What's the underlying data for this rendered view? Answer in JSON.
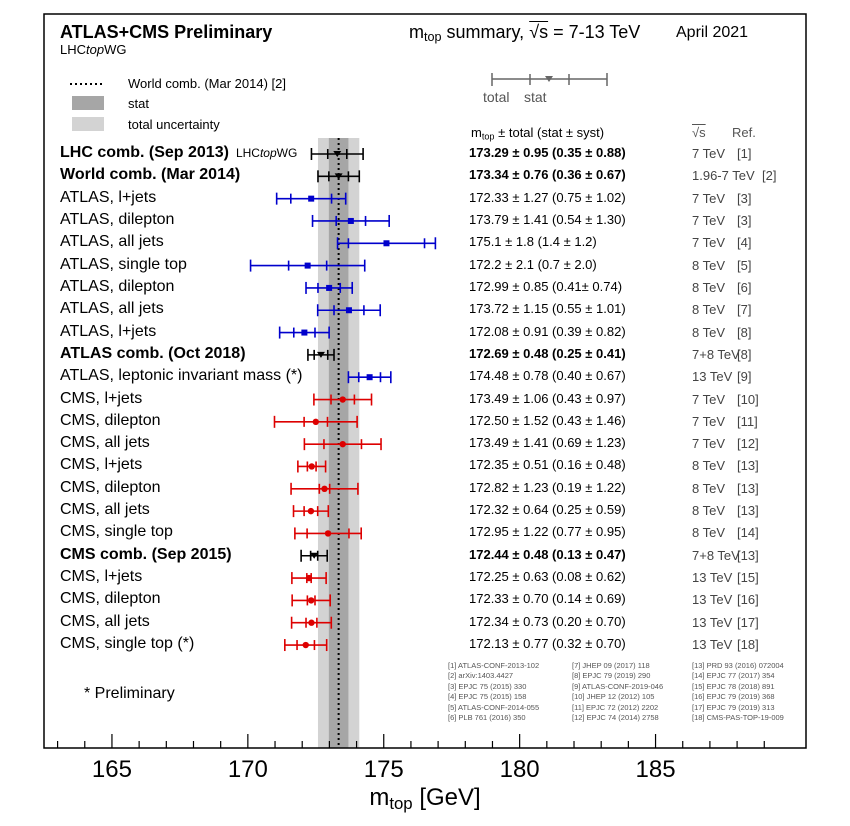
{
  "header": {
    "title": "ATLAS+CMS Preliminary",
    "group_pre": "LHC",
    "group_italic": "top",
    "group_post": "WG",
    "summary_pre": "m",
    "summary_sub": "top",
    "summary_mid": " summary, ",
    "summary_sqrt": "√s",
    "summary_post": " = 7-13 TeV",
    "date": "April 2021"
  },
  "legend": {
    "world_comb": "World comb. (Mar 2014) [2]",
    "stat": "stat",
    "total": "total uncertainty",
    "err_total": "total",
    "err_stat": "stat"
  },
  "columns": {
    "value_pre": "m",
    "value_sub": "top",
    "value_post": " ± total (stat ± syst)",
    "sqrt": "√s",
    "ref": "Ref."
  },
  "colors": {
    "black": "#000000",
    "blue": "#0000cc",
    "red": "#dd0000",
    "band_total": "#d3d3d3",
    "band_stat": "#a6a6a6"
  },
  "world_combination": {
    "value": 173.34,
    "stat": 0.36,
    "total": 0.76
  },
  "chart_data": {
    "type": "forest",
    "xlabel_pre": "m",
    "xlabel_sub": "top",
    "xlabel_post": " [GeV]",
    "xlim": [
      162.5,
      189.5
    ],
    "xticks": [
      "165",
      "170",
      "175",
      "180",
      "185"
    ],
    "rows": [
      {
        "label": "LHC comb. (Sep 2013)",
        "tag_pre": "LHC",
        "tag_italic": "top",
        "tag_post": "WG",
        "value": 173.29,
        "total": 0.95,
        "stat": 0.35,
        "text": "173.29 ± 0.95 (0.35 ± 0.88)",
        "energy": "7 TeV",
        "ref": "[1]",
        "color": "black",
        "bold": true,
        "marker": "tri"
      },
      {
        "label": "World comb. (Mar 2014)",
        "value": 173.34,
        "total": 0.76,
        "stat": 0.36,
        "text": "173.34 ± 0.76 (0.36 ± 0.67)",
        "energy": "1.96-7 TeV",
        "ref": "[2]",
        "color": "black",
        "bold": true,
        "marker": "tri"
      },
      {
        "label": "ATLAS, l+jets",
        "value": 172.33,
        "total": 1.27,
        "stat": 0.75,
        "text": "172.33 ± 1.27 (0.75 ± 1.02)",
        "energy": "7 TeV",
        "ref": "[3]",
        "color": "blue",
        "bold": false,
        "marker": "square"
      },
      {
        "label": "ATLAS, dilepton",
        "value": 173.79,
        "total": 1.41,
        "stat": 0.54,
        "text": "173.79 ± 1.41 (0.54 ± 1.30)",
        "energy": "7 TeV",
        "ref": "[3]",
        "color": "blue",
        "bold": false,
        "marker": "square"
      },
      {
        "label": "ATLAS, all jets",
        "value": 175.1,
        "total": 1.8,
        "stat": 1.4,
        "text": "175.1 ± 1.8 (1.4 ± 1.2)",
        "energy": "7 TeV",
        "ref": "[4]",
        "color": "blue",
        "bold": false,
        "marker": "square"
      },
      {
        "label": "ATLAS, single top",
        "value": 172.2,
        "total": 2.1,
        "stat": 0.7,
        "text": "172.2 ± 2.1 (0.7 ± 2.0)",
        "energy": "8 TeV",
        "ref": "[5]",
        "color": "blue",
        "bold": false,
        "marker": "square"
      },
      {
        "label": "ATLAS, dilepton",
        "value": 172.99,
        "total": 0.85,
        "stat": 0.41,
        "text": "172.99 ± 0.85 (0.41± 0.74)",
        "energy": "8 TeV",
        "ref": "[6]",
        "color": "blue",
        "bold": false,
        "marker": "square"
      },
      {
        "label": "ATLAS, all jets",
        "value": 173.72,
        "total": 1.15,
        "stat": 0.55,
        "text": "173.72 ± 1.15 (0.55 ± 1.01)",
        "energy": "8 TeV",
        "ref": "[7]",
        "color": "blue",
        "bold": false,
        "marker": "square"
      },
      {
        "label": "ATLAS, l+jets",
        "value": 172.08,
        "total": 0.91,
        "stat": 0.39,
        "text": "172.08 ± 0.91 (0.39 ± 0.82)",
        "energy": "8 TeV",
        "ref": "[8]",
        "color": "blue",
        "bold": false,
        "marker": "square"
      },
      {
        "label": "ATLAS comb. (Oct 2018)",
        "value": 172.69,
        "total": 0.48,
        "stat": 0.25,
        "text": "172.69 ± 0.48 (0.25 ± 0.41)",
        "energy": "7+8 TeV",
        "ref": "[8]",
        "color": "black",
        "bold": true,
        "marker": "tri"
      },
      {
        "label": "ATLAS, leptonic invariant mass (*)",
        "value": 174.48,
        "total": 0.78,
        "stat": 0.4,
        "text": "174.48 ± 0.78 (0.40 ± 0.67)",
        "energy": "13 TeV",
        "ref": "[9]",
        "color": "blue",
        "bold": false,
        "marker": "square"
      },
      {
        "label": "CMS, l+jets",
        "value": 173.49,
        "total": 1.06,
        "stat": 0.43,
        "text": "173.49 ± 1.06 (0.43 ± 0.97)",
        "energy": "7 TeV",
        "ref": "[10]",
        "color": "red",
        "bold": false,
        "marker": "circle"
      },
      {
        "label": "CMS, dilepton",
        "value": 172.5,
        "total": 1.52,
        "stat": 0.43,
        "text": "172.50 ± 1.52 (0.43 ± 1.46)",
        "energy": "7 TeV",
        "ref": "[11]",
        "color": "red",
        "bold": false,
        "marker": "circle"
      },
      {
        "label": "CMS, all jets",
        "value": 173.49,
        "total": 1.41,
        "stat": 0.69,
        "text": "173.49 ± 1.41 (0.69 ± 1.23)",
        "energy": "7 TeV",
        "ref": "[12]",
        "color": "red",
        "bold": false,
        "marker": "circle"
      },
      {
        "label": "CMS, l+jets",
        "value": 172.35,
        "total": 0.51,
        "stat": 0.16,
        "text": "172.35 ± 0.51 (0.16 ± 0.48)",
        "energy": "8 TeV",
        "ref": "[13]",
        "color": "red",
        "bold": false,
        "marker": "circle"
      },
      {
        "label": "CMS, dilepton",
        "value": 172.82,
        "total": 1.23,
        "stat": 0.19,
        "text": "172.82 ± 1.23 (0.19 ± 1.22)",
        "energy": "8 TeV",
        "ref": "[13]",
        "color": "red",
        "bold": false,
        "marker": "circle"
      },
      {
        "label": "CMS, all jets",
        "value": 172.32,
        "total": 0.64,
        "stat": 0.25,
        "text": "172.32 ± 0.64 (0.25 ± 0.59)",
        "energy": "8 TeV",
        "ref": "[13]",
        "color": "red",
        "bold": false,
        "marker": "circle"
      },
      {
        "label": "CMS, single top",
        "value": 172.95,
        "total": 1.22,
        "stat": 0.77,
        "text": "172.95 ± 1.22 (0.77 ± 0.95)",
        "energy": "8 TeV",
        "ref": "[14]",
        "color": "red",
        "bold": false,
        "marker": "circle"
      },
      {
        "label": "CMS comb. (Sep 2015)",
        "value": 172.44,
        "total": 0.48,
        "stat": 0.13,
        "text": "172.44 ± 0.48 (0.13 ± 0.47)",
        "energy": "7+8 TeV",
        "ref": "[13]",
        "color": "black",
        "bold": true,
        "marker": "tri"
      },
      {
        "label": "CMS, l+jets",
        "value": 172.25,
        "total": 0.63,
        "stat": 0.08,
        "text": "172.25 ± 0.63 (0.08 ± 0.62)",
        "energy": "13 TeV",
        "ref": "[15]",
        "color": "red",
        "bold": false,
        "marker": "circle"
      },
      {
        "label": "CMS, dilepton",
        "value": 172.33,
        "total": 0.7,
        "stat": 0.14,
        "text": "172.33 ± 0.70 (0.14 ± 0.69)",
        "energy": "13 TeV",
        "ref": "[16]",
        "color": "red",
        "bold": false,
        "marker": "circle"
      },
      {
        "label": "CMS, all jets",
        "value": 172.34,
        "total": 0.73,
        "stat": 0.2,
        "text": "172.34 ± 0.73 (0.20 ± 0.70)",
        "energy": "13 TeV",
        "ref": "[17]",
        "color": "red",
        "bold": false,
        "marker": "circle"
      },
      {
        "label": "CMS, single top (*)",
        "value": 172.13,
        "total": 0.77,
        "stat": 0.32,
        "text": "172.13 ± 0.77 (0.32 ± 0.70)",
        "energy": "13 TeV",
        "ref": "[18]",
        "color": "red",
        "bold": false,
        "marker": "circle"
      }
    ]
  },
  "footnote": "* Preliminary",
  "references": {
    "col1": [
      "[1] ATLAS-CONF-2013-102",
      "[2] arXiv:1403.4427",
      "[3] EPJC 75 (2015) 330",
      "[4] EPJC 75 (2015) 158",
      "[5] ATLAS-CONF-2014-055",
      "[6] PLB 761 (2016) 350"
    ],
    "col2": [
      "[7] JHEP 09 (2017) 118",
      "[8] EPJC 79 (2019) 290",
      "[9] ATLAS-CONF-2019-046",
      "[10] JHEP 12 (2012) 105",
      "[11] EPJC 72 (2012) 2202",
      "[12] EPJC 74 (2014) 2758"
    ],
    "col3": [
      "[13] PRD 93 (2016) 072004",
      "[14] EPJC 77 (2017) 354",
      "[15] EPJC 78 (2018) 891",
      "[16] EPJC 79 (2019) 368",
      "[17] EPJC 79 (2019) 313",
      "[18] CMS-PAS-TOP-19-009"
    ]
  }
}
